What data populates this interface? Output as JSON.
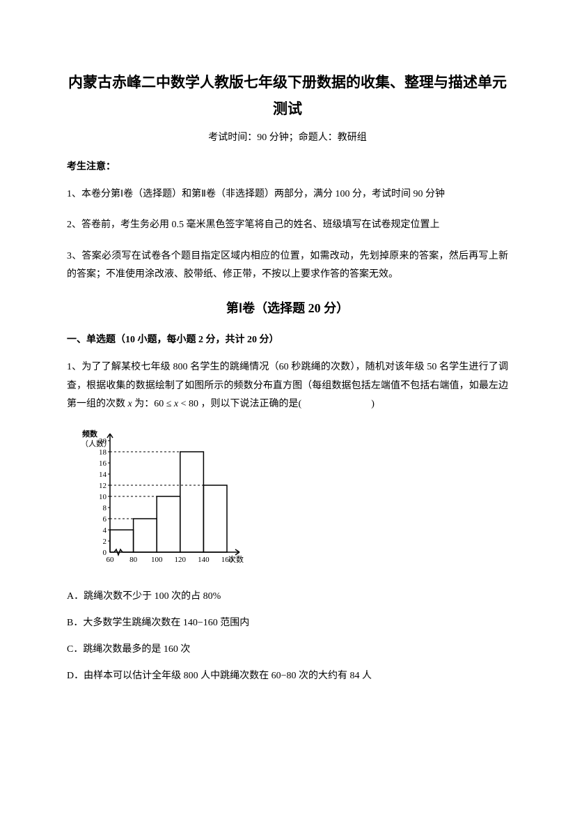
{
  "title": "内蒙古赤峰二中数学人教版七年级下册数据的收集、整理与描述单元测试",
  "subtitle": "考试时间：90 分钟；命题人：教研组",
  "notice_header": "考生注意：",
  "notice_1": "1、本卷分第Ⅰ卷（选择题）和第Ⅱ卷（非选择题）两部分，满分 100 分，考试时间 90 分钟",
  "notice_2": "2、答卷前，考生务必用 0.5 毫米黑色签字笔将自己的姓名、班级填写在试卷规定位置上",
  "notice_3": "3、答案必须写在试卷各个题目指定区域内相应的位置，如需改动，先划掉原来的答案，然后再写上新的答案；不准使用涂改液、胶带纸、修正带，不按以上要求作答的答案无效。",
  "section_title": "第Ⅰ卷（选择题  20 分）",
  "question_header": "一、单选题（10 小题，每小题 2 分，共计 20 分）",
  "question_1_part1": "1、为了了解某校七年级 800 名学生的跳绳情况（60 秒跳绳的次数），随机对该年级 50 名学生进行了调查，根据收集的数据绘制了如图所示的频数分布直方图（每组数据包括左端值不包括右端值，如最左边第一组的次数 ",
  "question_1_math": "x",
  "question_1_part2": " 为：60 ≤ ",
  "question_1_math2": "x",
  "question_1_part3": " < 80 ，则以下说法正确的是(",
  "question_1_part4": ")",
  "option_a": "A．跳绳次数不少于 100 次的占 80%",
  "option_b": "B．大多数学生跳绳次数在 140−160 范围内",
  "option_c": "C．跳绳次数最多的是 160 次",
  "option_d": "D．由样本可以估计全年级 800 人中跳绳次数在 60−80 次的大约有 84 人",
  "chart": {
    "type": "histogram",
    "y_label_line1": "频数",
    "y_label_line2": "（人数）",
    "x_label": "次数",
    "x_ticks": [
      "60",
      "80",
      "100",
      "120",
      "140",
      "160"
    ],
    "y_ticks": [
      0,
      2,
      4,
      6,
      8,
      10,
      12,
      14,
      16,
      18,
      20
    ],
    "bars": [
      {
        "x_start": 60,
        "x_end": 80,
        "value": 4
      },
      {
        "x_start": 80,
        "x_end": 100,
        "value": 6
      },
      {
        "x_start": 100,
        "x_end": 120,
        "value": 10
      },
      {
        "x_start": 120,
        "x_end": 140,
        "value": 18
      },
      {
        "x_start": 140,
        "x_end": 160,
        "value": 12
      }
    ],
    "y_max": 20,
    "x_min": 60,
    "x_max": 160,
    "stroke_color": "#000000",
    "stroke_width": 1.5,
    "font_size": 11
  }
}
